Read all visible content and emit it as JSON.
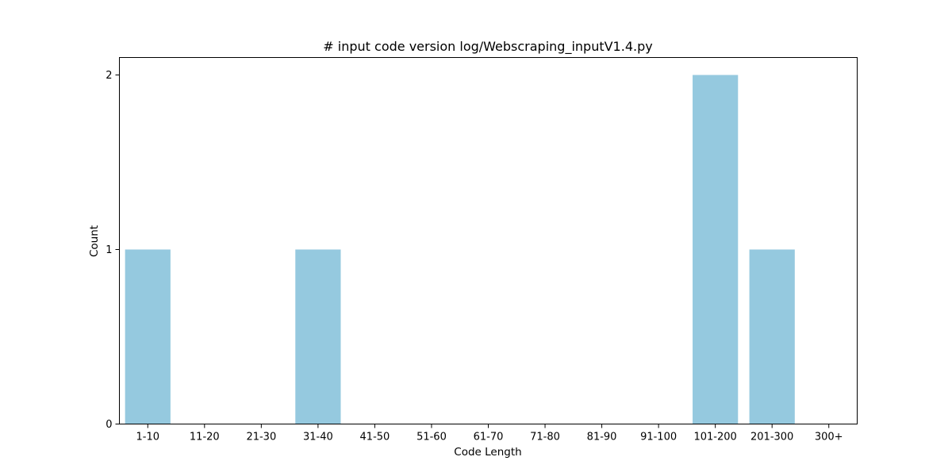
{
  "chart_data": {
    "type": "bar",
    "title": "# input code version log/Webscraping_inputV1.4.py",
    "xlabel": "Code Length",
    "ylabel": "Count",
    "categories": [
      "1-10",
      "11-20",
      "21-30",
      "31-40",
      "41-50",
      "51-60",
      "61-70",
      "71-80",
      "81-90",
      "91-100",
      "101-200",
      "201-300",
      "300+"
    ],
    "values": [
      1,
      0,
      0,
      1,
      0,
      0,
      0,
      0,
      0,
      0,
      2,
      1,
      0
    ],
    "ylim": [
      0,
      2.1
    ],
    "yticks": [
      "0",
      "1",
      "2"
    ],
    "bar_color": "#95c9df",
    "grid": false,
    "legend": "none"
  }
}
